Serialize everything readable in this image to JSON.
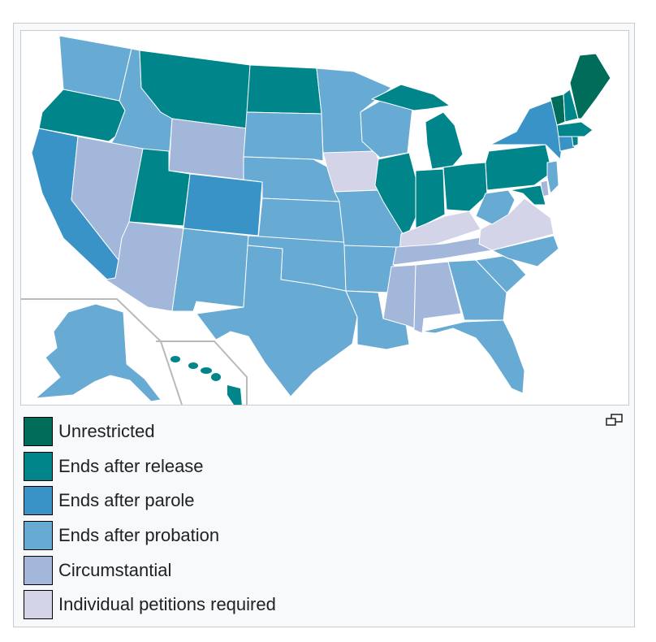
{
  "legend": {
    "items": [
      {
        "label": "Unrestricted",
        "color": "#006d5b"
      },
      {
        "label": "Ends after release",
        "color": "#00868a"
      },
      {
        "label": "Ends after parole",
        "color": "#3a93c7"
      },
      {
        "label": "Ends after probation",
        "color": "#67aad3"
      },
      {
        "label": "Circumstantial",
        "color": "#a3b7da"
      },
      {
        "label": "Individual petitions required",
        "color": "#d4d4e9"
      }
    ]
  },
  "colors": {
    "frame_background": "#f8f9fa",
    "frame_border": "#c8ccd1",
    "state_border": "#ffffff",
    "inset_border": "#b9b9b9"
  },
  "icons": {
    "enlarge": "enlarge-icon"
  }
}
